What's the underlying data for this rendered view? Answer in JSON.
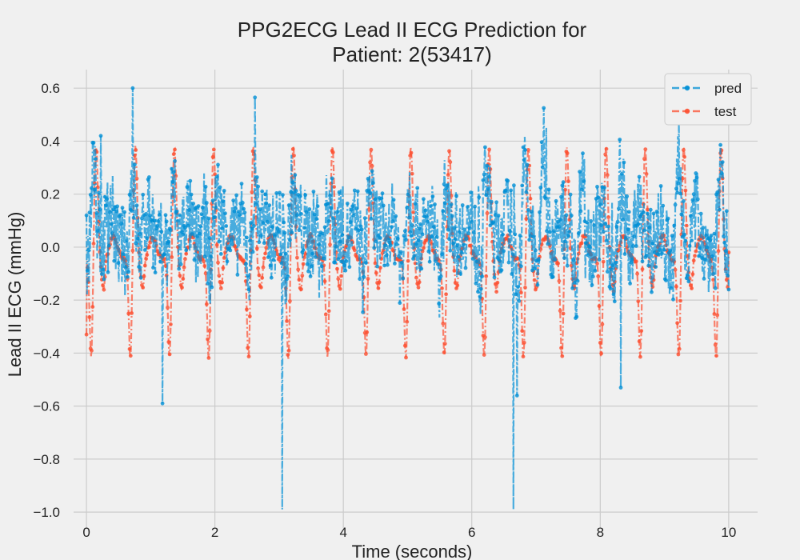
{
  "chart_data": {
    "type": "line",
    "title_lines": [
      "PPG2ECG Lead II ECG Prediction for",
      "Patient: 2(53417)"
    ],
    "xlabel": "Time (seconds)",
    "ylabel": "Lead II ECG (mmHg)",
    "xlim": [
      -0.2,
      10.45
    ],
    "ylim": [
      -1.06,
      0.67
    ],
    "x_ticks": [
      0,
      2,
      4,
      6,
      8,
      10
    ],
    "x_tick_labels": [
      "0",
      "2",
      "4",
      "6",
      "8",
      "10"
    ],
    "y_ticks": [
      0.6,
      0.4,
      0.2,
      0.0,
      -0.2,
      -0.4,
      -0.6,
      -0.8,
      -1.0
    ],
    "y_tick_labels": [
      "0.6",
      "0.4",
      "0.2",
      "0.0",
      "−0.2",
      "−0.4",
      "−0.6",
      "−0.8",
      "−1.0"
    ],
    "grid": true,
    "legend_position": "top-right",
    "sample_interval_s": 0.008,
    "duration_s": 10.0,
    "series": [
      {
        "name": "pred",
        "color": "#008fd5",
        "line_style": "dash-dot",
        "marker": "circle",
        "beat_times_s": [
          0.12,
          0.72,
          1.36,
          2.02,
          2.62,
          3.2,
          3.77,
          4.4,
          5.0,
          5.6,
          6.22,
          6.82,
          7.12,
          7.72,
          8.32,
          9.22,
          9.87
        ],
        "notable_points": [
          [
            0.72,
            0.6
          ],
          [
            2.62,
            0.565
          ],
          [
            3.05,
            -0.99
          ],
          [
            6.65,
            -0.99
          ],
          [
            1.18,
            -0.59
          ],
          [
            7.12,
            0.525
          ],
          [
            8.32,
            -0.53
          ],
          [
            6.7,
            -0.56
          ],
          [
            0.22,
            0.42
          ],
          [
            9.22,
            0.47
          ]
        ],
        "start_value": 0.12,
        "end_value": -0.16
      },
      {
        "name": "test",
        "color": "#fc4f30",
        "line_style": "dash-dot",
        "marker": "circle",
        "beat_times_s": [
          0.15,
          0.76,
          1.37,
          1.98,
          2.6,
          3.22,
          3.83,
          4.43,
          5.05,
          5.65,
          6.27,
          6.88,
          7.48,
          8.09,
          8.7,
          9.3,
          9.88
        ],
        "peak_value": 0.38,
        "trough_value": -0.43,
        "baseline": -0.05,
        "start_value": -0.33,
        "end_value": -0.02
      }
    ]
  }
}
